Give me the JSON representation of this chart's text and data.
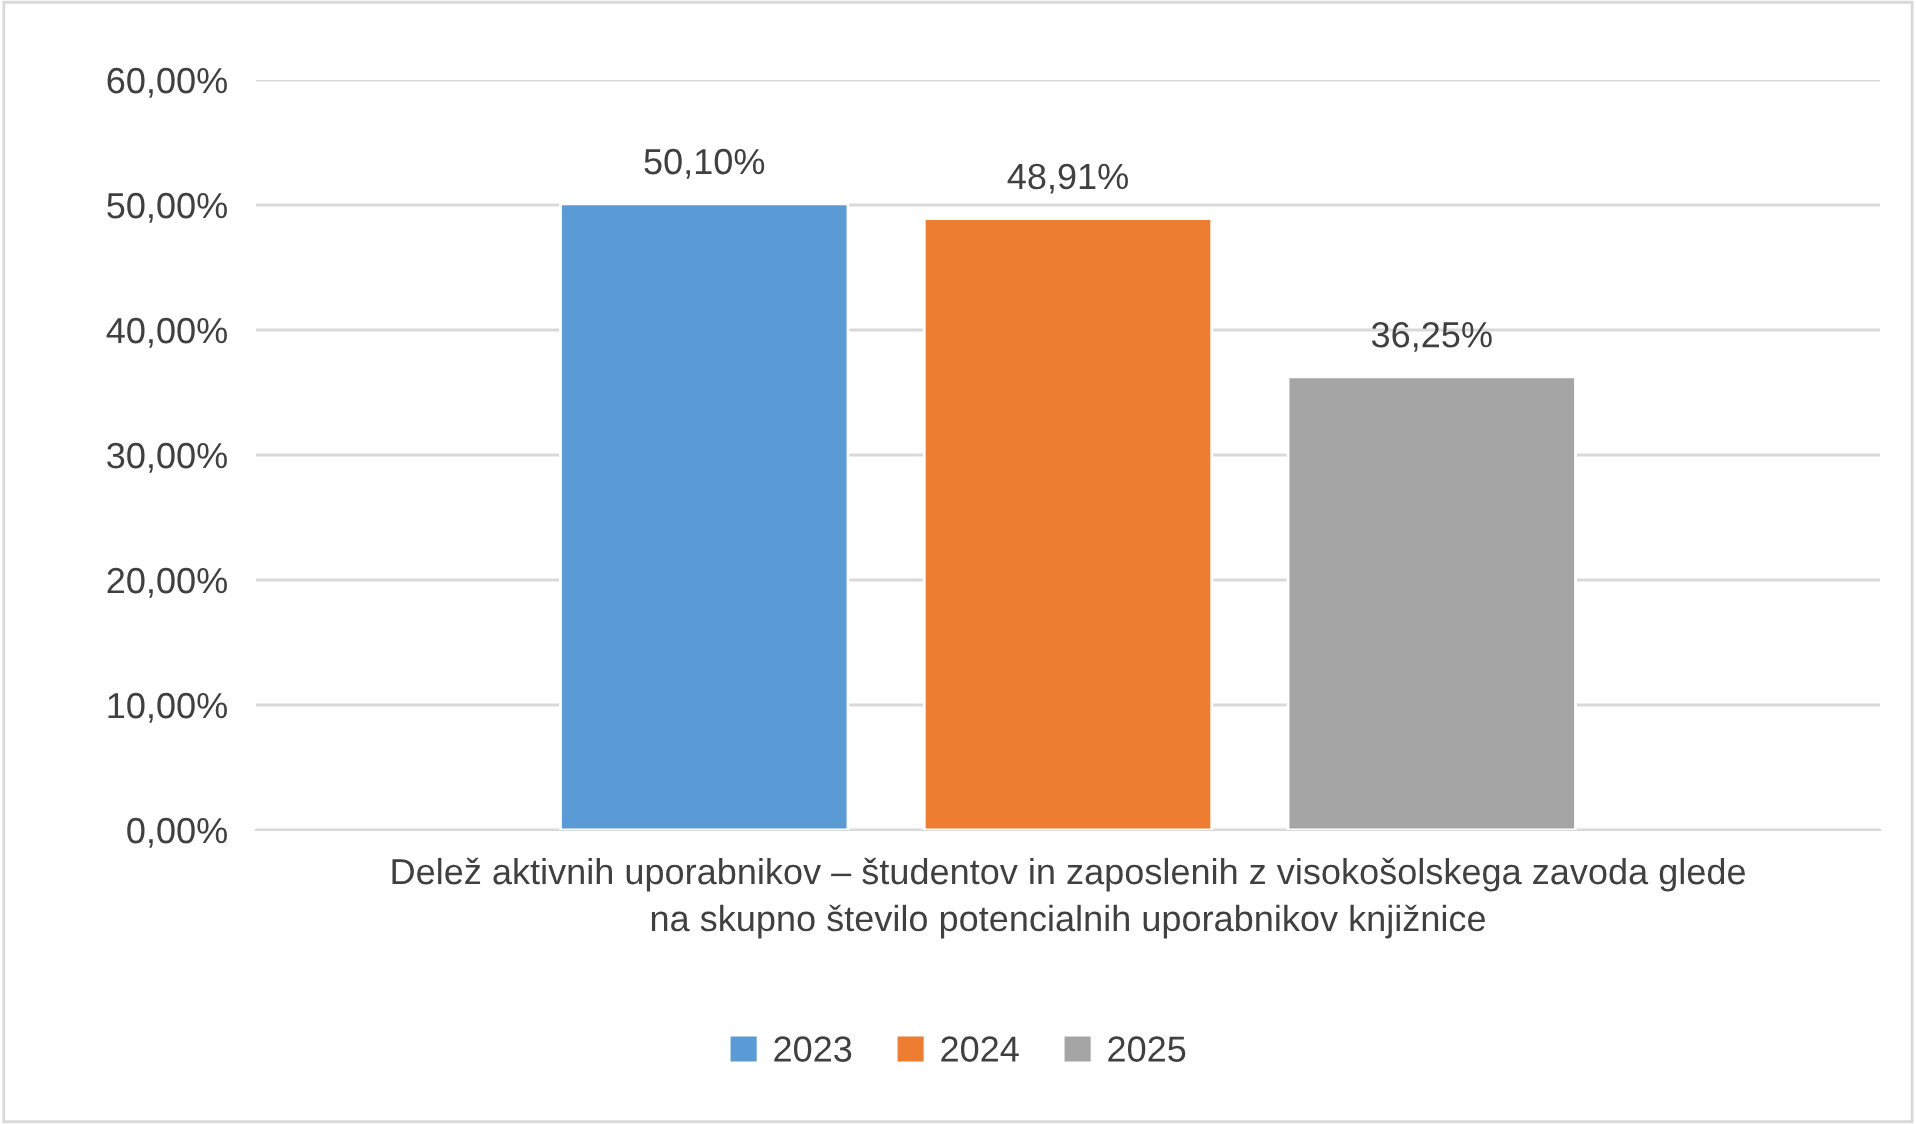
{
  "chart_data": {
    "type": "bar",
    "categories": [
      "Delež aktivnih uporabnikov – študentov in zaposlenih z visokošolskega zavoda glede\nna skupno število potencialnih uporabnikov knjižnice"
    ],
    "series": [
      {
        "name": "2023",
        "color": "#5b9bd5",
        "values": [
          50.1
        ],
        "value_labels": [
          "50,10%"
        ]
      },
      {
        "name": "2024",
        "color": "#ed7d31",
        "values": [
          48.91
        ],
        "value_labels": [
          "48,91%"
        ]
      },
      {
        "name": "2025",
        "color": "#a5a5a5",
        "values": [
          36.25
        ],
        "value_labels": [
          "36,25%"
        ]
      }
    ],
    "ylim": [
      0,
      60
    ],
    "yticks": [
      {
        "value": 0,
        "label": "0,00%"
      },
      {
        "value": 10,
        "label": "10,00%"
      },
      {
        "value": 20,
        "label": "20,00%"
      },
      {
        "value": 30,
        "label": "30,00%"
      },
      {
        "value": 40,
        "label": "40,00%"
      },
      {
        "value": 50,
        "label": "50,00%"
      },
      {
        "value": 60,
        "label": "60,00%"
      }
    ],
    "grid": "y",
    "legend": "bottom"
  }
}
